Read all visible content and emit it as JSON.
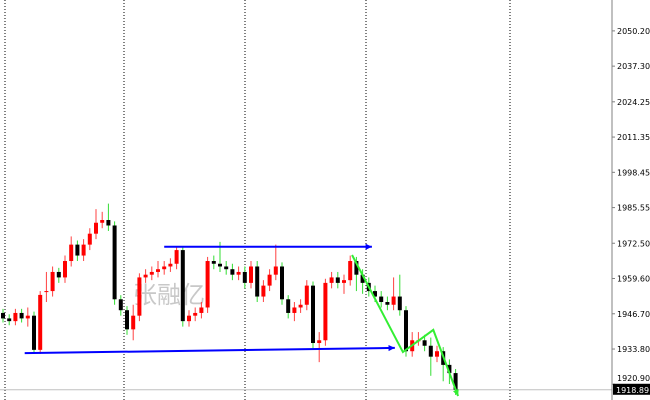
{
  "chart_data": {
    "type": "candlestick",
    "title": "",
    "watermark": "张融亿",
    "ylim": [
      1915.15,
      2061.5
    ],
    "y_ticks": [
      "2050.20",
      "2037.30",
      "2024.25",
      "2011.35",
      "1998.45",
      "1985.55",
      "1972.50",
      "1959.60",
      "1946.70",
      "1933.80",
      "1920.90"
    ],
    "current_price": "1918.89",
    "grid": "vertical dotted",
    "colors": {
      "up_body": "#ff0000",
      "up_wick": "#ff4040",
      "down_body": "#000000",
      "down_wick": "#33dd33",
      "trend_blue": "#0000ff",
      "trend_green": "#33ee33",
      "price_line": "#c0c0c0"
    },
    "candles_ohlc": [
      [
        1947,
        1948.5,
        1943.5,
        1945
      ],
      [
        1945,
        1946.5,
        1942.5,
        1944
      ],
      [
        1944,
        1948.5,
        1942.5,
        1947
      ],
      [
        1947,
        1948.5,
        1943.5,
        1945
      ],
      [
        1945,
        1949,
        1942,
        1946
      ],
      [
        1946,
        1947.5,
        1932,
        1933.5
      ],
      [
        1933.5,
        1955,
        1932,
        1953.6
      ],
      [
        1955,
        1962,
        1951,
        1955
      ],
      [
        1955,
        1964,
        1953,
        1962
      ],
      [
        1962,
        1963.5,
        1958,
        1960
      ],
      [
        1960,
        1968,
        1958,
        1966
      ],
      [
        1966,
        1975,
        1964,
        1972
      ],
      [
        1972,
        1973.5,
        1966,
        1968
      ],
      [
        1968,
        1974,
        1966,
        1972
      ],
      [
        1972,
        1978,
        1970,
        1976
      ],
      [
        1976,
        1985,
        1974,
        1980
      ],
      [
        1980,
        1984,
        1978,
        1981
      ],
      [
        1981,
        1987,
        1977,
        1979
      ],
      [
        1979,
        1980.5,
        1950,
        1952
      ],
      [
        1952,
        1953.5,
        1946,
        1948
      ],
      [
        1948,
        1949.5,
        1939,
        1941
      ],
      [
        1941,
        1950,
        1937,
        1946
      ],
      [
        1946,
        1961.5,
        1944,
        1960
      ],
      [
        1960,
        1963,
        1958,
        1961
      ],
      [
        1961,
        1964,
        1959,
        1962
      ],
      [
        1962,
        1966,
        1960,
        1963
      ],
      [
        1963,
        1966,
        1961,
        1964
      ],
      [
        1964,
        1967,
        1962,
        1965
      ],
      [
        1965,
        1971.5,
        1963,
        1970
      ],
      [
        1970,
        1971.5,
        1942,
        1944
      ],
      [
        1944,
        1948,
        1942,
        1946
      ],
      [
        1946,
        1949,
        1944,
        1947
      ],
      [
        1947,
        1951,
        1945,
        1949
      ],
      [
        1949,
        1967.5,
        1947,
        1966
      ],
      [
        1966,
        1968,
        1963,
        1965
      ],
      [
        1965,
        1973,
        1962,
        1964
      ],
      [
        1964,
        1966,
        1961,
        1963
      ],
      [
        1963,
        1965,
        1959,
        1961
      ],
      [
        1961,
        1964,
        1959,
        1962
      ],
      [
        1962,
        1964,
        1956,
        1958
      ],
      [
        1958,
        1966,
        1956,
        1964
      ],
      [
        1964,
        1966,
        1951,
        1953
      ],
      [
        1953,
        1959,
        1951,
        1957
      ],
      [
        1957,
        1963,
        1955,
        1961
      ],
      [
        1961,
        1972,
        1959,
        1964
      ],
      [
        1964,
        1965.5,
        1950,
        1952
      ],
      [
        1952,
        1953.5,
        1945,
        1947
      ],
      [
        1947,
        1951,
        1944,
        1949
      ],
      [
        1949,
        1952,
        1947,
        1950
      ],
      [
        1950,
        1959,
        1948,
        1957
      ],
      [
        1957,
        1958.5,
        1934,
        1936
      ],
      [
        1936,
        1940,
        1929,
        1937
      ],
      [
        1937,
        1959.5,
        1935,
        1958
      ],
      [
        1958,
        1962,
        1956,
        1960
      ],
      [
        1960,
        1962,
        1956,
        1958
      ],
      [
        1958,
        1961,
        1954,
        1959
      ],
      [
        1959,
        1968,
        1957,
        1966
      ],
      [
        1966,
        1967.5,
        1955,
        1961
      ],
      [
        1961,
        1963,
        1954,
        1958
      ],
      [
        1958,
        1960,
        1953,
        1955
      ],
      [
        1955,
        1957,
        1951,
        1953
      ],
      [
        1953,
        1955,
        1949,
        1951
      ],
      [
        1951,
        1953,
        1948,
        1950
      ],
      [
        1950,
        1960,
        1948,
        1953
      ],
      [
        1953,
        1961,
        1946,
        1948
      ],
      [
        1948,
        1949.5,
        1931,
        1933
      ],
      [
        1933,
        1940,
        1931,
        1937
      ],
      [
        1937,
        1940,
        1935,
        1937
      ],
      [
        1937,
        1939,
        1933,
        1935
      ],
      [
        1935,
        1938,
        1924,
        1931
      ],
      [
        1931,
        1935,
        1929,
        1933
      ],
      [
        1933,
        1934.5,
        1922,
        1928
      ],
      [
        1928,
        1930,
        1921,
        1925
      ],
      [
        1925,
        1926.5,
        1917,
        1918.9
      ]
    ],
    "trend_lines": [
      {
        "color": "blue",
        "arrow": true,
        "points": [
          [
            26,
            1971.2
          ],
          [
            59.5,
            1971.2
          ]
        ]
      },
      {
        "color": "blue",
        "arrow": true,
        "points": [
          [
            3.5,
            1932.3
          ],
          [
            63.2,
            1934.2
          ]
        ]
      },
      {
        "color": "green",
        "arrow": true,
        "points": [
          [
            56.3,
            1968.2
          ],
          [
            64.5,
            1932.7
          ],
          [
            69.4,
            1940.8
          ],
          [
            73.4,
            1916.6
          ]
        ]
      }
    ]
  }
}
